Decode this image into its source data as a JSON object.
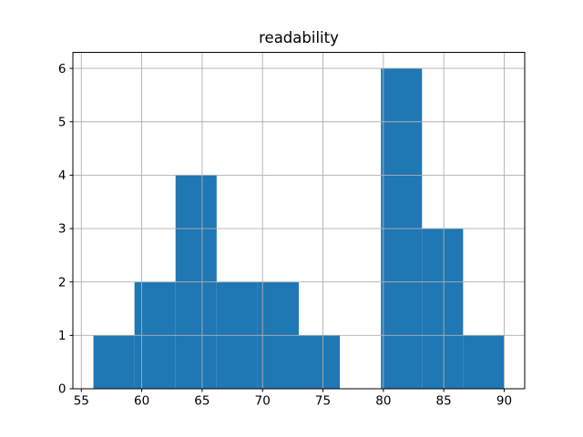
{
  "chart_data": {
    "type": "bar",
    "subtype": "histogram",
    "title": "readability",
    "xlabel": "",
    "ylabel": "",
    "bin_edges": [
      56.0,
      59.4,
      62.8,
      66.2,
      69.6,
      73.0,
      76.4,
      79.8,
      83.2,
      86.6,
      90.0
    ],
    "values": [
      1,
      2,
      4,
      2,
      2,
      1,
      0,
      6,
      3,
      1
    ],
    "x_ticks": [
      "55",
      "60",
      "65",
      "70",
      "75",
      "80",
      "85",
      "90"
    ],
    "x_tick_values": [
      55,
      60,
      65,
      70,
      75,
      80,
      85,
      90
    ],
    "y_ticks": [
      "0",
      "1",
      "2",
      "3",
      "4",
      "5",
      "6"
    ],
    "y_tick_values": [
      0,
      1,
      2,
      3,
      4,
      5,
      6
    ],
    "xlim": [
      54.3,
      91.7
    ],
    "ylim": [
      0,
      6.3
    ],
    "grid": true,
    "grid_above_bars": true,
    "legend": null,
    "colors": {
      "bar": "#1f77b4",
      "grid": "#b0b0b0",
      "spine": "#000000",
      "background": "#ffffff"
    }
  }
}
